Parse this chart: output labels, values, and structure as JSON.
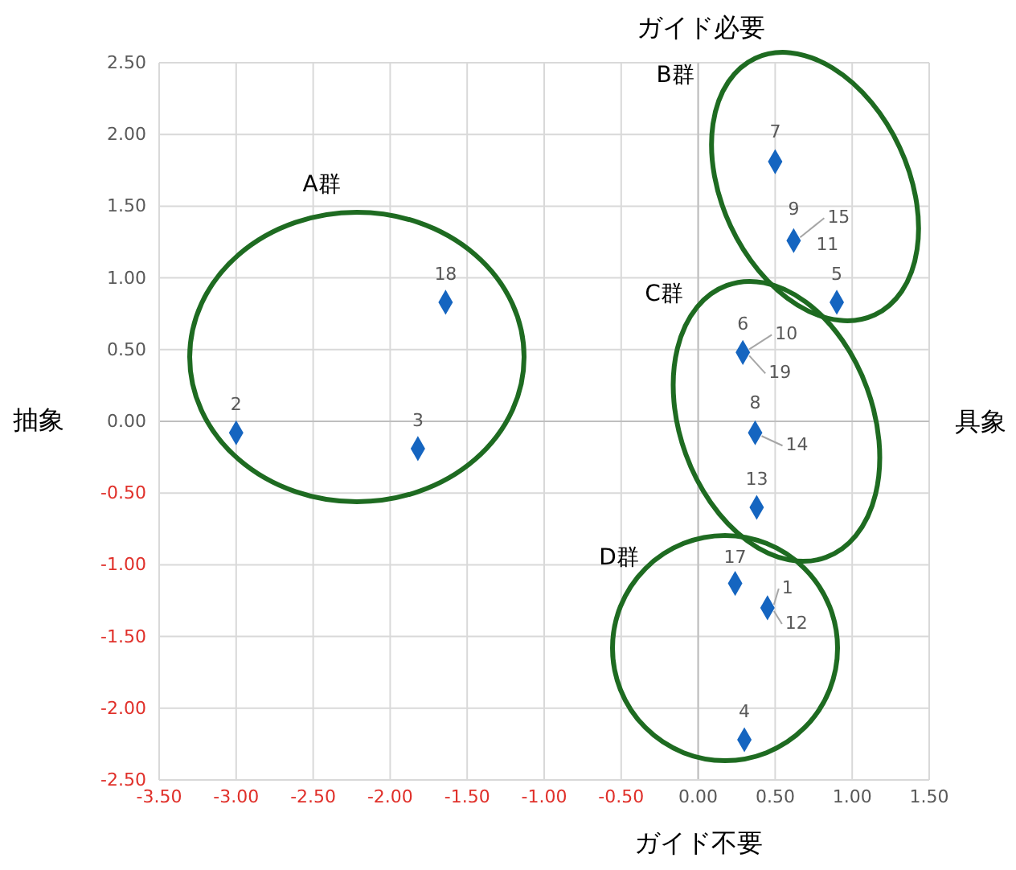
{
  "chart_data": {
    "type": "scatter",
    "xlabel": "ガイド不要",
    "ylabel": "抽象",
    "x": [
      -3.0,
      -1.82,
      -1.64,
      0.5,
      0.62,
      0.9,
      0.29,
      0.37,
      0.38,
      0.24,
      0.45,
      0.3
    ],
    "series": [
      {
        "color": "#1565c0",
        "values": [
          -0.08,
          -0.19,
          0.83,
          1.81,
          1.26,
          0.83,
          0.48,
          -0.08,
          -0.6,
          -1.13,
          -1.3,
          -2.22
        ]
      }
    ],
    "marker": "diamond",
    "grid": true,
    "xlim": [
      -3.5,
      1.5
    ],
    "ylim": [
      -2.5,
      2.5
    ],
    "xticks": [
      {
        "value": -3.5,
        "label": "-3.50"
      },
      {
        "value": -3,
        "label": "-3.00"
      },
      {
        "value": -2.5,
        "label": "-2.50"
      },
      {
        "value": -2,
        "label": "-2.00"
      },
      {
        "value": -1.5,
        "label": "-1.50"
      },
      {
        "value": -1,
        "label": "-1.00"
      },
      {
        "value": -0.5,
        "label": "-0.50"
      },
      {
        "value": 0,
        "label": "0.00"
      },
      {
        "value": 0.5,
        "label": "0.50"
      },
      {
        "value": 1,
        "label": "1.00"
      },
      {
        "value": 1.5,
        "label": "1.50"
      }
    ],
    "yticks": [
      {
        "value": -2.5,
        "label": "-2.50"
      },
      {
        "value": -2,
        "label": "-2.00"
      },
      {
        "value": -1.5,
        "label": "-1.50"
      },
      {
        "value": -1,
        "label": "-1.00"
      },
      {
        "value": -0.5,
        "label": "-0.50"
      },
      {
        "value": 0,
        "label": "0.00"
      },
      {
        "value": 0.5,
        "label": "0.50"
      },
      {
        "value": 1,
        "label": "1.00"
      },
      {
        "value": 1.5,
        "label": "1.50"
      },
      {
        "value": 2,
        "label": "2.00"
      },
      {
        "value": 2.5,
        "label": "2.50"
      }
    ],
    "annotations": [
      {
        "text": "2",
        "x": -3.0,
        "y": -0.08
      },
      {
        "text": "3",
        "x": -1.82,
        "y": -0.19
      },
      {
        "text": "18",
        "x": -1.64,
        "y": 0.83
      },
      {
        "text": "7",
        "x": 0.5,
        "y": 1.81
      },
      {
        "text": "9",
        "x": 0.62,
        "y": 1.26
      },
      {
        "text": "15",
        "x": 0.62,
        "y": 1.26
      },
      {
        "text": "11",
        "x": 0.62,
        "y": 1.26
      },
      {
        "text": "5",
        "x": 0.9,
        "y": 0.83
      },
      {
        "text": "6",
        "x": 0.29,
        "y": 0.48
      },
      {
        "text": "10",
        "x": 0.29,
        "y": 0.48
      },
      {
        "text": "19",
        "x": 0.29,
        "y": 0.48
      },
      {
        "text": "8",
        "x": 0.37,
        "y": -0.08
      },
      {
        "text": "14",
        "x": 0.37,
        "y": -0.08
      },
      {
        "text": "13",
        "x": 0.38,
        "y": -0.6
      },
      {
        "text": "17",
        "x": 0.24,
        "y": -1.13
      },
      {
        "text": "1",
        "x": 0.45,
        "y": -1.3
      },
      {
        "text": "12",
        "x": 0.45,
        "y": -1.3
      },
      {
        "text": "4",
        "x": 0.3,
        "y": -2.22
      },
      "A群",
      "B群",
      "C群",
      "D群",
      "ガイド必要",
      "具象"
    ]
  }
}
